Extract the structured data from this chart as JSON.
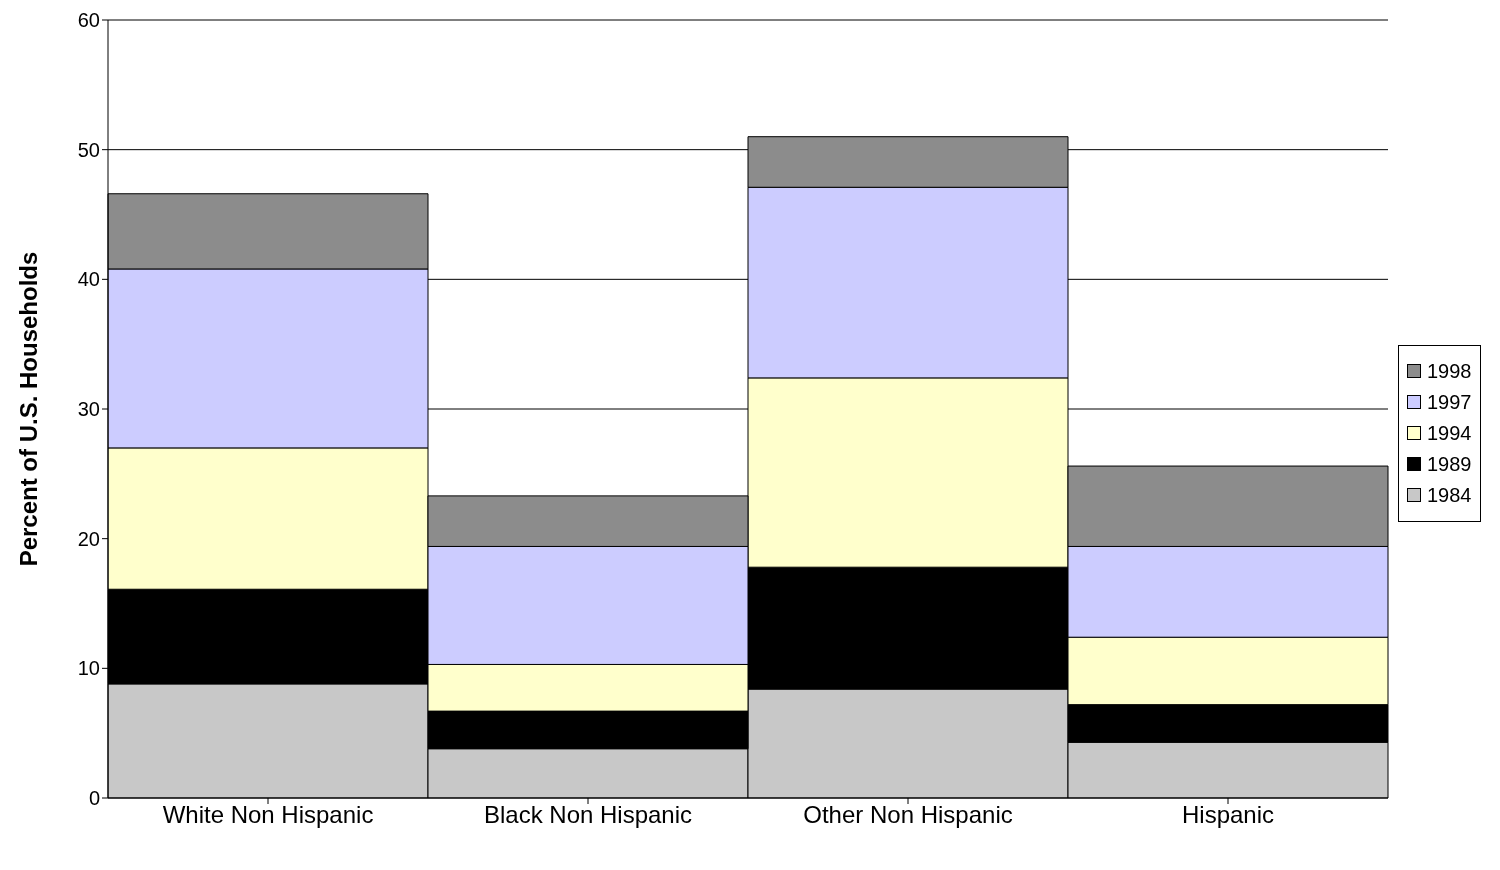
{
  "chart_data": {
    "type": "bar",
    "stacked": true,
    "ylabel": "Percent of U.S. Households",
    "categories": [
      "White Non Hispanic",
      "Black Non Hispanic",
      "Other Non Hispanic",
      "Hispanic"
    ],
    "series": [
      {
        "name": "1984",
        "color": "#c8c8c8",
        "values": [
          8.8,
          3.8,
          8.4,
          4.3
        ]
      },
      {
        "name": "1989",
        "color": "#000000",
        "values": [
          7.3,
          2.9,
          9.4,
          2.9
        ]
      },
      {
        "name": "1994",
        "color": "#ffffcc",
        "values": [
          10.9,
          3.6,
          14.6,
          5.2
        ]
      },
      {
        "name": "1997",
        "color": "#ccccff",
        "values": [
          13.8,
          9.1,
          14.7,
          7.0
        ]
      },
      {
        "name": "1998",
        "color": "#8c8c8c",
        "values": [
          5.8,
          3.9,
          3.9,
          6.2
        ]
      }
    ],
    "ylim": [
      0,
      60
    ],
    "yticks": [
      0,
      10,
      20,
      30,
      40,
      50,
      60
    ],
    "grid": "y",
    "legend": "right"
  }
}
